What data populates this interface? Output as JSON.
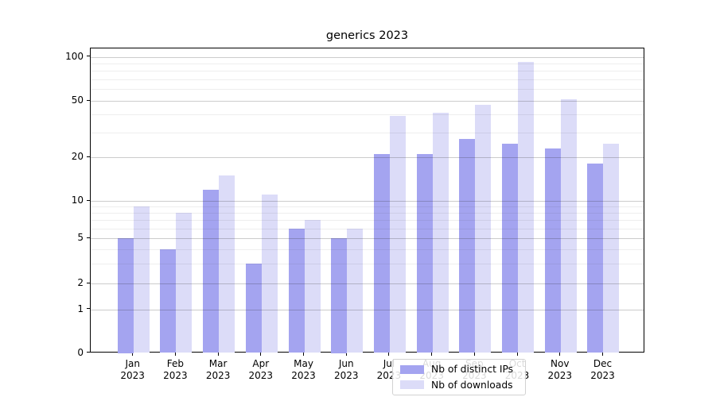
{
  "chart_data": {
    "type": "bar",
    "title": "generics 2023",
    "categories": [
      "Jan",
      "Feb",
      "Mar",
      "Apr",
      "May",
      "Jun",
      "Jul",
      "Aug",
      "Sep",
      "Oct",
      "Nov",
      "Dec"
    ],
    "x_label_second_line": "2023",
    "series": [
      {
        "name": "Nb of distinct IPs",
        "color": "#a4a4f0",
        "values": [
          5,
          4,
          12,
          3,
          6,
          5,
          21,
          21,
          27,
          25,
          23,
          18
        ]
      },
      {
        "name": "Nb of downloads",
        "color": "#dcdcf8",
        "values": [
          9,
          8,
          15,
          11,
          7,
          6,
          39,
          41,
          47,
          92,
          51,
          25
        ]
      }
    ],
    "y_axis": {
      "scale": "symlog",
      "major_ticks": [
        0,
        1,
        2,
        5,
        10,
        20,
        50,
        100
      ],
      "minor_ticks": [
        3,
        4,
        6,
        7,
        8,
        9,
        30,
        40,
        60,
        70,
        80,
        90
      ],
      "range": [
        0,
        115
      ]
    },
    "legend": {
      "position": "lower-center-inside",
      "items": [
        "Nb of distinct IPs",
        "Nb of downloads"
      ]
    },
    "grid": {
      "major": true,
      "minor": true,
      "grid_above_bars": true
    }
  }
}
